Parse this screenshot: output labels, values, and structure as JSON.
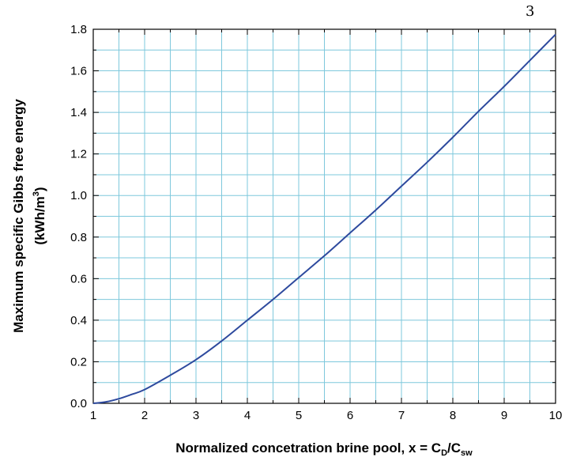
{
  "page_number": "3",
  "chart_data": {
    "type": "line",
    "xlabel_main": "Normalized concetration brine pool,  x = C",
    "xlabel_sub1": "D",
    "xlabel_mid": "/C",
    "xlabel_sub2": "sw",
    "ylabel_line1": "Maximum specific Gibbs free energy",
    "ylabel_line2_main": "(kWh/m",
    "ylabel_line2_sup": "3",
    "ylabel_line2_end": ")",
    "xlim": [
      1,
      10
    ],
    "ylim": [
      0.0,
      1.8
    ],
    "x_ticks": [
      "1",
      "2",
      "3",
      "4",
      "5",
      "6",
      "7",
      "8",
      "9",
      "10"
    ],
    "y_ticks": [
      "0.0",
      "0.2",
      "0.4",
      "0.6",
      "0.8",
      "1.0",
      "1.2",
      "1.4",
      "1.6",
      "1.8"
    ],
    "grid": true,
    "grid_color": "#7ec8dc",
    "line_color": "#2e4a9e",
    "series": [
      {
        "x": [
          1.0,
          1.25,
          1.5,
          1.75,
          2.0,
          2.5,
          3.0,
          3.5,
          4.0,
          4.5,
          5.0,
          5.5,
          6.0,
          6.5,
          7.0,
          7.5,
          8.0,
          8.5,
          9.0,
          9.5,
          10.0
        ],
        "y": [
          0.0,
          0.007,
          0.022,
          0.043,
          0.066,
          0.135,
          0.21,
          0.3,
          0.4,
          0.5,
          0.605,
          0.71,
          0.82,
          0.93,
          1.045,
          1.16,
          1.28,
          1.405,
          1.525,
          1.65,
          1.775
        ]
      }
    ]
  }
}
